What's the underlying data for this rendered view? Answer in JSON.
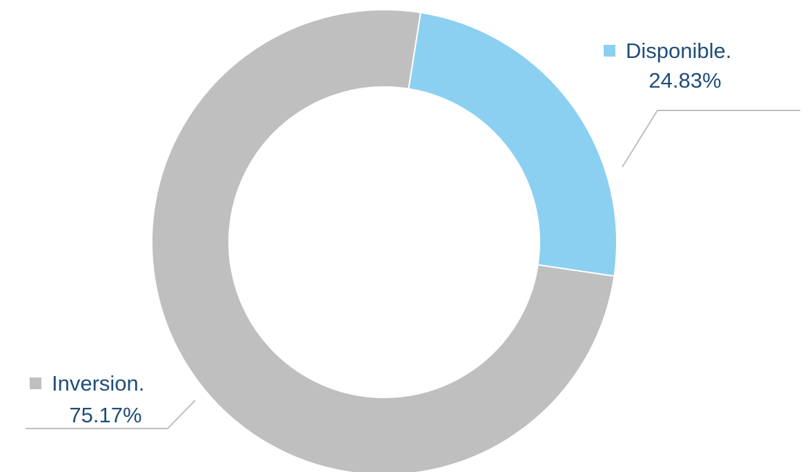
{
  "chart_data": {
    "type": "pie",
    "donut": true,
    "slices": [
      {
        "name": "Disponible.",
        "value": 24.83,
        "value_label": "24.83%",
        "color": "#8bd0f1"
      },
      {
        "name": "Inversion.",
        "value": 75.17,
        "value_label": "75.17%",
        "color": "#bfbfbf"
      }
    ],
    "label_color": "#1f4e79",
    "leader_line_color": "#bfbfbf",
    "legend": "inline"
  }
}
